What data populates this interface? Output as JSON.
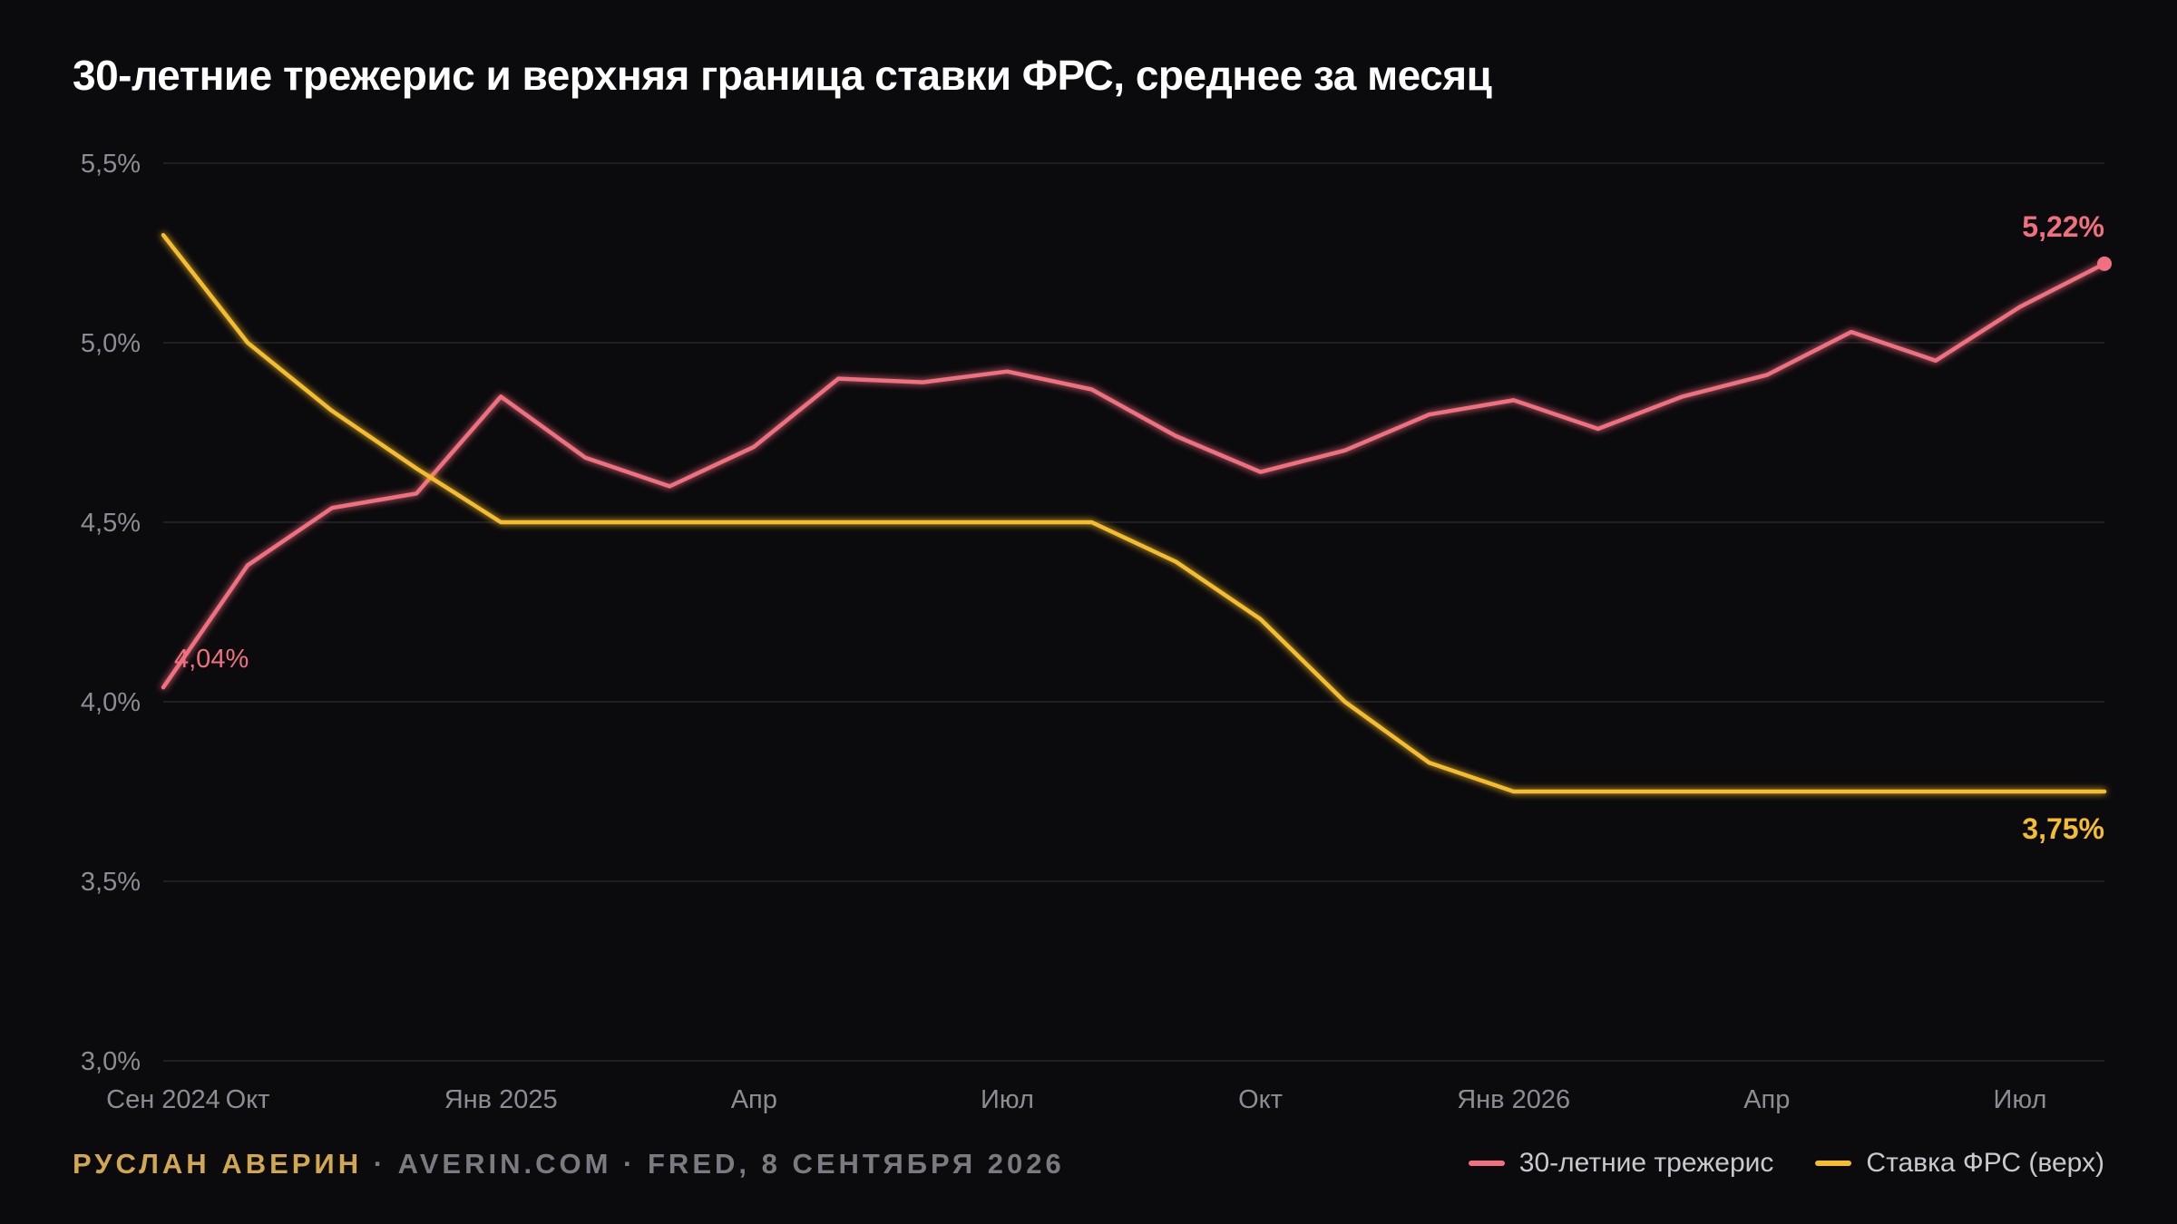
{
  "title": "30-летние трежерис и верхняя граница ставки ФРС, среднее за месяц",
  "footer": {
    "author": "РУСЛАН АВЕРИН",
    "separator": " · ",
    "site": "AVERIN.COM",
    "source": "FRED, 8 СЕНТЯБРЯ 2026"
  },
  "colors": {
    "background": "#0b0a0d",
    "treasury": "#f0707f",
    "fed": "#f5bd2e",
    "grid": "#26252a",
    "tick": "#8d8c92"
  },
  "chart_data": {
    "type": "line",
    "title": "30-летние трежерис и верхняя граница ставки ФРС, среднее за месяц",
    "xlabel": "",
    "ylabel": "",
    "ylim": [
      3.0,
      5.5
    ],
    "grid": true,
    "legend_position": "bottom-right",
    "y_ticks": [
      3.0,
      3.5,
      4.0,
      4.5,
      5.0,
      5.5
    ],
    "y_tick_labels": [
      "3,0%",
      "3,5%",
      "4,0%",
      "4,5%",
      "5,0%",
      "5,5%"
    ],
    "x_labels": [
      {
        "index": 0,
        "label": "Сен 2024"
      },
      {
        "index": 1,
        "label": "Окт"
      },
      {
        "index": 4,
        "label": "Янв 2025"
      },
      {
        "index": 7,
        "label": "Апр"
      },
      {
        "index": 10,
        "label": "Июл"
      },
      {
        "index": 13,
        "label": "Окт"
      },
      {
        "index": 16,
        "label": "Янв 2026"
      },
      {
        "index": 19,
        "label": "Апр"
      },
      {
        "index": 22,
        "label": "Июл"
      }
    ],
    "x": [
      "2024-09",
      "2024-10",
      "2024-11",
      "2024-12",
      "2025-01",
      "2025-02",
      "2025-03",
      "2025-04",
      "2025-05",
      "2025-06",
      "2025-07",
      "2025-08",
      "2025-09",
      "2025-10",
      "2025-11",
      "2025-12",
      "2026-01",
      "2026-02",
      "2026-03",
      "2026-04",
      "2026-05",
      "2026-06",
      "2026-07",
      "2026-08"
    ],
    "series": [
      {
        "name": "30-летние трежерис",
        "color": "#f0707f",
        "values": [
          4.04,
          4.38,
          4.54,
          4.58,
          4.85,
          4.68,
          4.6,
          4.71,
          4.9,
          4.89,
          4.92,
          4.87,
          4.74,
          4.64,
          4.7,
          4.8,
          4.84,
          4.76,
          4.85,
          4.91,
          5.03,
          4.95,
          5.1,
          5.22
        ],
        "start_label": "4,04%",
        "end_label": "5,22%"
      },
      {
        "name": "Ставка ФРС (верх)",
        "color": "#f5bd2e",
        "values": [
          5.3,
          5.0,
          4.81,
          4.65,
          4.5,
          4.5,
          4.5,
          4.5,
          4.5,
          4.5,
          4.5,
          4.5,
          4.39,
          4.23,
          4.0,
          3.83,
          3.75,
          3.75,
          3.75,
          3.75,
          3.75,
          3.75,
          3.75,
          3.75
        ],
        "end_label": "3,75%"
      }
    ]
  }
}
